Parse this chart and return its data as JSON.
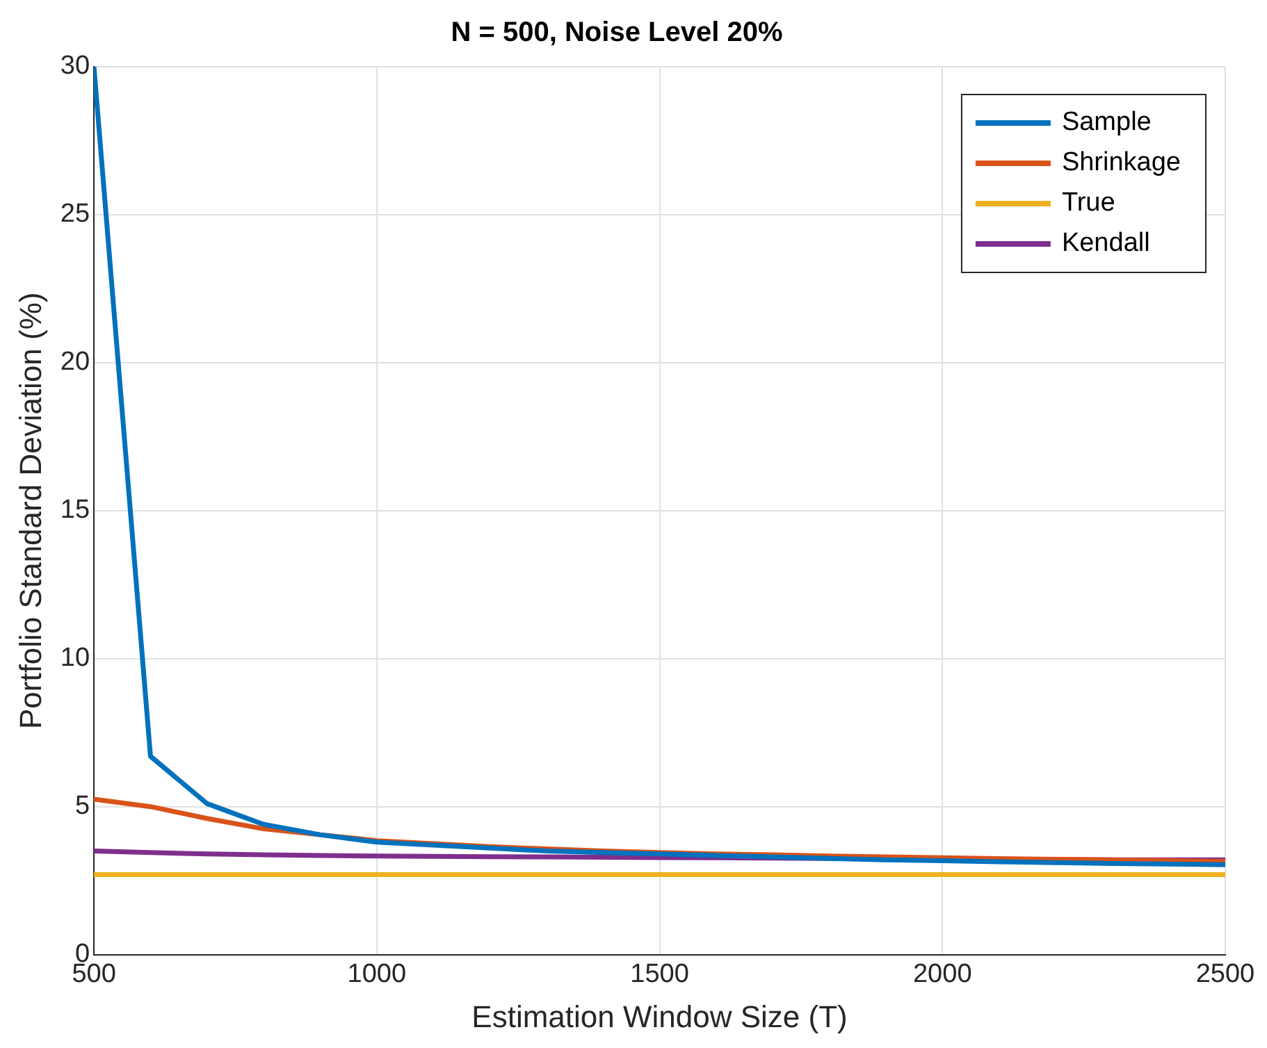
{
  "chart_data": {
    "type": "line",
    "title": "N = 500, Noise Level 20%",
    "xlabel": "Estimation Window Size (T)",
    "ylabel": "Portfolio Standard Deviation (%)",
    "x": [
      500,
      600,
      700,
      800,
      900,
      1000,
      1100,
      1200,
      1300,
      1400,
      1500,
      1600,
      1700,
      1800,
      1900,
      2000,
      2100,
      2200,
      2300,
      2400,
      2500
    ],
    "series": [
      {
        "name": "Sample",
        "color": "#0072bd",
        "values": [
          30,
          6.7,
          5.1,
          4.4,
          4.05,
          3.8,
          3.7,
          3.6,
          3.5,
          3.45,
          3.4,
          3.35,
          3.3,
          3.25,
          3.2,
          3.17,
          3.14,
          3.11,
          3.08,
          3.06,
          3.04
        ]
      },
      {
        "name": "Shrinkage",
        "color": "#d95319",
        "values": [
          5.25,
          5.0,
          4.6,
          4.25,
          4.05,
          3.85,
          3.75,
          3.65,
          3.57,
          3.5,
          3.45,
          3.4,
          3.37,
          3.33,
          3.3,
          3.27,
          3.24,
          3.22,
          3.2,
          3.18,
          3.15
        ]
      },
      {
        "name": "True",
        "color": "#edb120",
        "values": [
          2.7,
          2.7,
          2.7,
          2.7,
          2.7,
          2.7,
          2.7,
          2.7,
          2.7,
          2.7,
          2.7,
          2.7,
          2.7,
          2.7,
          2.7,
          2.7,
          2.7,
          2.7,
          2.7,
          2.7,
          2.7
        ]
      },
      {
        "name": "Kendall",
        "color": "#7e2f8e",
        "values": [
          3.5,
          3.45,
          3.4,
          3.37,
          3.35,
          3.33,
          3.32,
          3.31,
          3.3,
          3.29,
          3.28,
          3.27,
          3.26,
          3.25,
          3.24,
          3.23,
          3.22,
          3.21,
          3.2,
          3.2,
          3.2
        ]
      }
    ],
    "xlim": [
      500,
      2500
    ],
    "xticks": [
      500,
      1000,
      1500,
      2000,
      2500
    ],
    "ylim": [
      0,
      30
    ],
    "yticks": [
      0,
      5,
      10,
      15,
      20,
      25,
      30
    ],
    "grid": true,
    "legend": "top right",
    "marker": "none",
    "line_style": "solid"
  }
}
